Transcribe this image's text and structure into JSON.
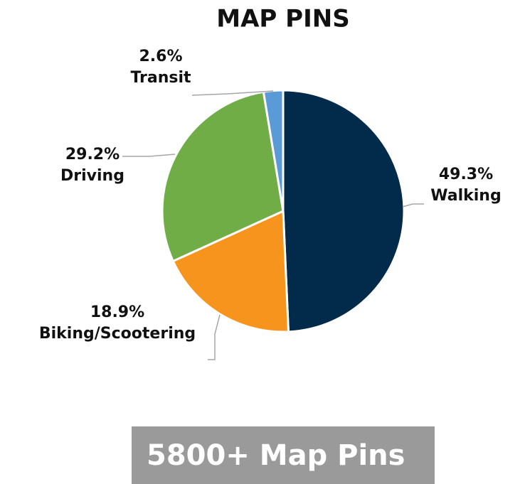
{
  "chart_data": {
    "type": "pie",
    "title": "MAP PINS",
    "categories": [
      "Walking",
      "Biking/Scootering",
      "Driving",
      "Transit"
    ],
    "values": [
      49.3,
      18.9,
      29.2,
      2.6
    ],
    "value_labels": [
      "49.3%",
      "18.9%",
      "29.2%",
      "2.6%"
    ],
    "colors": [
      "#022a4b",
      "#f7941d",
      "#71ad47",
      "#5a9ad6"
    ]
  },
  "banner": "5800+ Map Pins"
}
